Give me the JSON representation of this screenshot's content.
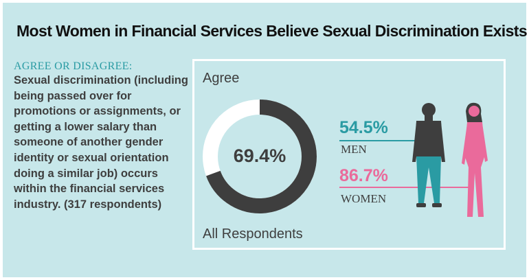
{
  "title": "Most Women in Financial Services Believe Sexual Discrimination Exists",
  "question": {
    "label": "AGREE OR DISAGREE:",
    "text": "Sexual discrimination (including being passed over for promotions or assignments, or getting a lower salary than someone of another gender identity or sexual orientation doing a similar job) occurs within the financial services industry.",
    "respondents": "(317 respondents)"
  },
  "colors": {
    "background": "#c7e7ea",
    "teal": "#2a9ba3",
    "pink": "#ea6a9b",
    "dark": "#3e3e3e",
    "ring_remainder": "#ffffff"
  },
  "chart_data": {
    "type": "pie",
    "heading": "Agree",
    "overall": {
      "label": "All Respondents",
      "value": 69.4,
      "display": "69.4%"
    },
    "groups": [
      {
        "name": "MEN",
        "value": 54.5,
        "display": "54.5%",
        "color": "#2a9ba3"
      },
      {
        "name": "WOMEN",
        "value": 86.7,
        "display": "86.7%",
        "color": "#ea6a9b"
      }
    ]
  }
}
